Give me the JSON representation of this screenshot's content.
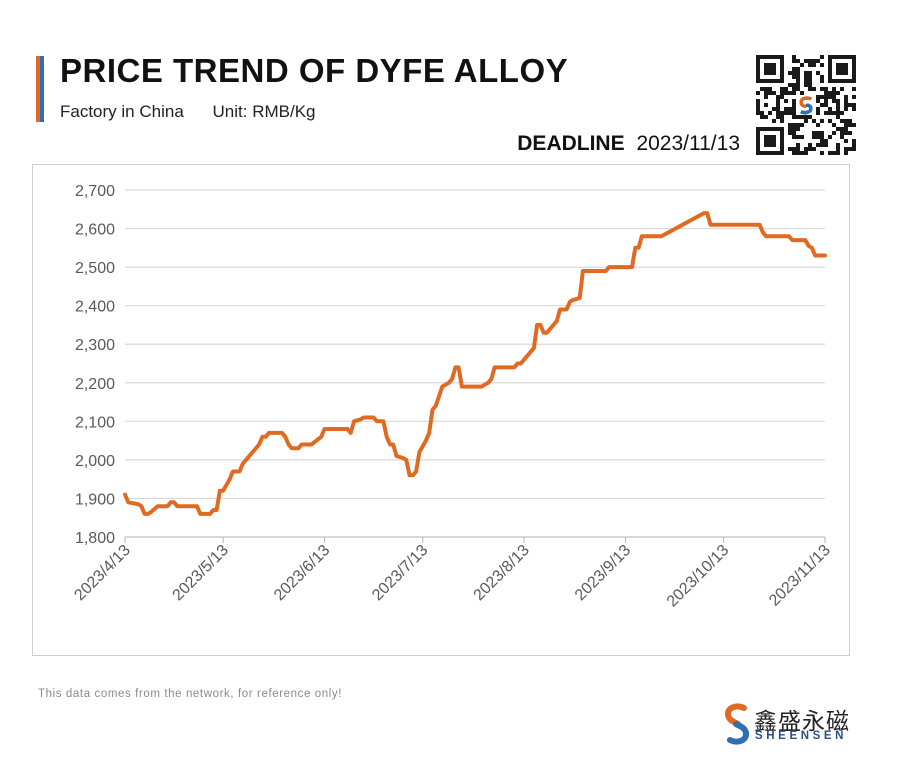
{
  "header": {
    "title": "PRICE TREND OF DYFE ALLOY",
    "subtitle_left": "Factory in China",
    "subtitle_right": "Unit: RMB/Kg",
    "deadline_label": "DEADLINE",
    "deadline_date": "2023/11/13"
  },
  "footer": {
    "note": "This data comes from the network, for reference only!",
    "brand_cn": "鑫盛永磁",
    "brand_en": "SHEENSEN"
  },
  "colors": {
    "line": "#e06a22",
    "grid": "#d9d9d9",
    "axis_text": "#595959",
    "brand_orange": "#e06a22",
    "brand_blue": "#2f6fb3"
  },
  "icons": {
    "qr": "qr-code-icon",
    "logo": "sheensen-logo-icon"
  },
  "chart_data": {
    "type": "line",
    "title": "PRICE TREND OF DYFE ALLOY",
    "xlabel": "",
    "ylabel": "",
    "ylim": [
      1800,
      2700
    ],
    "yticks": [
      1800,
      1900,
      2000,
      2100,
      2200,
      2300,
      2400,
      2500,
      2600,
      2700
    ],
    "ytick_labels": [
      "1,800",
      "1,900",
      "2,000",
      "2,100",
      "2,200",
      "2,300",
      "2,400",
      "2,500",
      "2,600",
      "2,700"
    ],
    "xlim": [
      "2023-04-13",
      "2023-11-13"
    ],
    "xtick_labels": [
      "2023/4/13",
      "2023/5/13",
      "2023/6/13",
      "2023/7/13",
      "2023/8/13",
      "2023/9/13",
      "2023/10/13",
      "2023/11/13"
    ],
    "xticks": [
      "2023-04-13",
      "2023-05-13",
      "2023-06-13",
      "2023-07-13",
      "2023-08-13",
      "2023-09-13",
      "2023-10-13",
      "2023-11-13"
    ],
    "grid": true,
    "legend": "none",
    "series": [
      {
        "points": [
          [
            "2023-04-13",
            1910
          ],
          [
            "2023-04-14",
            1890
          ],
          [
            "2023-04-17",
            1885
          ],
          [
            "2023-04-18",
            1880
          ],
          [
            "2023-04-19",
            1860
          ],
          [
            "2023-04-20",
            1860
          ],
          [
            "2023-04-21",
            1865
          ],
          [
            "2023-04-23",
            1880
          ],
          [
            "2023-04-25",
            1880
          ],
          [
            "2023-04-26",
            1880
          ],
          [
            "2023-04-27",
            1890
          ],
          [
            "2023-04-28",
            1890
          ],
          [
            "2023-04-29",
            1880
          ],
          [
            "2023-05-05",
            1880
          ],
          [
            "2023-05-06",
            1860
          ],
          [
            "2023-05-08",
            1860
          ],
          [
            "2023-05-09",
            1860
          ],
          [
            "2023-05-10",
            1870
          ],
          [
            "2023-05-11",
            1870
          ],
          [
            "2023-05-12",
            1920
          ],
          [
            "2023-05-13",
            1920
          ],
          [
            "2023-05-15",
            1950
          ],
          [
            "2023-05-16",
            1970
          ],
          [
            "2023-05-18",
            1970
          ],
          [
            "2023-05-19",
            1990
          ],
          [
            "2023-05-24",
            2040
          ],
          [
            "2023-05-25",
            2060
          ],
          [
            "2023-05-26",
            2060
          ],
          [
            "2023-05-27",
            2070
          ],
          [
            "2023-05-31",
            2070
          ],
          [
            "2023-06-01",
            2060
          ],
          [
            "2023-06-02",
            2040
          ],
          [
            "2023-06-03",
            2030
          ],
          [
            "2023-06-05",
            2030
          ],
          [
            "2023-06-06",
            2040
          ],
          [
            "2023-06-08",
            2040
          ],
          [
            "2023-06-09",
            2040
          ],
          [
            "2023-06-12",
            2060
          ],
          [
            "2023-06-13",
            2080
          ],
          [
            "2023-06-20",
            2080
          ],
          [
            "2023-06-21",
            2070
          ],
          [
            "2023-06-22",
            2100
          ],
          [
            "2023-06-24",
            2105
          ],
          [
            "2023-06-25",
            2110
          ],
          [
            "2023-06-28",
            2110
          ],
          [
            "2023-06-29",
            2100
          ],
          [
            "2023-07-01",
            2100
          ],
          [
            "2023-07-02",
            2060
          ],
          [
            "2023-07-03",
            2040
          ],
          [
            "2023-07-04",
            2040
          ],
          [
            "2023-07-05",
            2010
          ],
          [
            "2023-07-07",
            2005
          ],
          [
            "2023-07-08",
            2000
          ],
          [
            "2023-07-09",
            1960
          ],
          [
            "2023-07-10",
            1960
          ],
          [
            "2023-07-11",
            1970
          ],
          [
            "2023-07-12",
            2020
          ],
          [
            "2023-07-14",
            2050
          ],
          [
            "2023-07-15",
            2070
          ],
          [
            "2023-07-16",
            2130
          ],
          [
            "2023-07-17",
            2140
          ],
          [
            "2023-07-19",
            2190
          ],
          [
            "2023-07-21",
            2200
          ],
          [
            "2023-07-22",
            2210
          ],
          [
            "2023-07-23",
            2240
          ],
          [
            "2023-07-24",
            2240
          ],
          [
            "2023-07-25",
            2190
          ],
          [
            "2023-07-31",
            2190
          ],
          [
            "2023-08-02",
            2200
          ],
          [
            "2023-08-03",
            2210
          ],
          [
            "2023-08-04",
            2240
          ],
          [
            "2023-08-10",
            2240
          ],
          [
            "2023-08-11",
            2250
          ],
          [
            "2023-08-12",
            2250
          ],
          [
            "2023-08-13",
            2260
          ],
          [
            "2023-08-16",
            2290
          ],
          [
            "2023-08-17",
            2350
          ],
          [
            "2023-08-18",
            2350
          ],
          [
            "2023-08-19",
            2330
          ],
          [
            "2023-08-20",
            2330
          ],
          [
            "2023-08-22",
            2350
          ],
          [
            "2023-08-23",
            2360
          ],
          [
            "2023-08-24",
            2390
          ],
          [
            "2023-08-26",
            2390
          ],
          [
            "2023-08-27",
            2410
          ],
          [
            "2023-08-28",
            2415
          ],
          [
            "2023-08-30",
            2420
          ],
          [
            "2023-08-31",
            2490
          ],
          [
            "2023-09-07",
            2490
          ],
          [
            "2023-09-08",
            2500
          ],
          [
            "2023-09-15",
            2500
          ],
          [
            "2023-09-16",
            2550
          ],
          [
            "2023-09-17",
            2550
          ],
          [
            "2023-09-18",
            2580
          ],
          [
            "2023-09-24",
            2580
          ],
          [
            "2023-10-07",
            2640
          ],
          [
            "2023-10-08",
            2640
          ],
          [
            "2023-10-09",
            2610
          ],
          [
            "2023-10-24",
            2610
          ],
          [
            "2023-10-25",
            2590
          ],
          [
            "2023-10-26",
            2580
          ],
          [
            "2023-11-02",
            2580
          ],
          [
            "2023-11-03",
            2570
          ],
          [
            "2023-11-07",
            2570
          ],
          [
            "2023-11-08",
            2555
          ],
          [
            "2023-11-09",
            2550
          ],
          [
            "2023-11-10",
            2530
          ],
          [
            "2023-11-13",
            2530
          ]
        ]
      }
    ]
  }
}
